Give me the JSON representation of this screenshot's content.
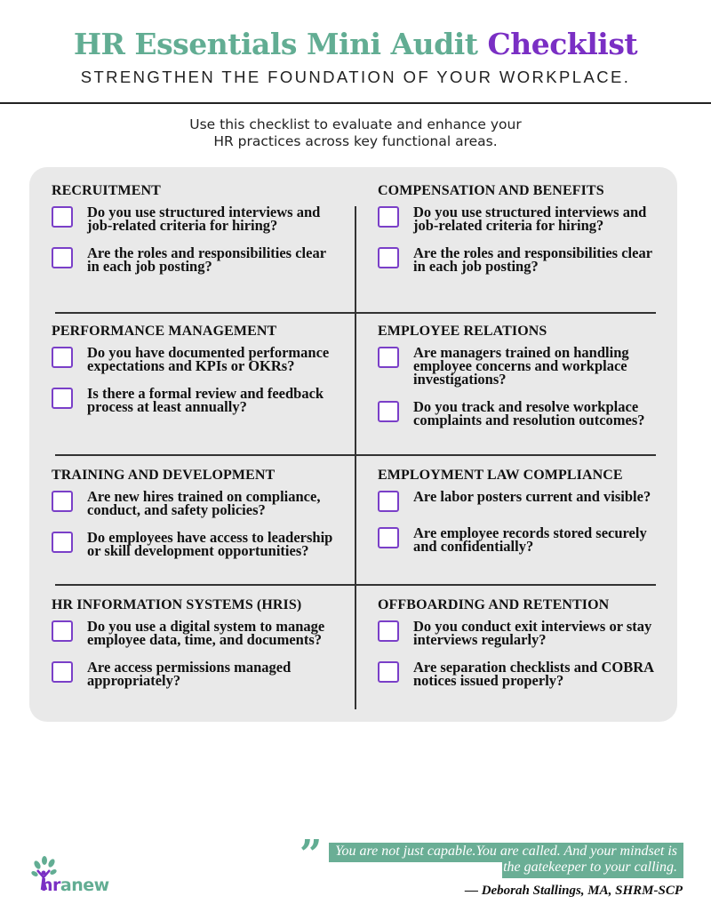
{
  "header": {
    "title_main": "HR Essentials Mini Audit",
    "title_accent": "Checklist",
    "tagline": "STRENGTHEN THE FOUNDATION OF YOUR WORKPLACE.",
    "intro_line1": "Use this checklist to evaluate and enhance your",
    "intro_line2": "HR practices across key functional areas."
  },
  "colors": {
    "accent_green": "#62ad93",
    "accent_purple": "#7a2fc4",
    "panel": "#e9e9e9"
  },
  "sections": [
    {
      "title": "RECRUITMENT",
      "items": [
        "Do you use structured interviews and job-related criteria for hiring?",
        "Are the roles and responsibilities clear in each job posting?"
      ]
    },
    {
      "title": "COMPENSATION AND BENEFITS",
      "items": [
        "Do you use structured interviews and job-related criteria for hiring?",
        "Are the roles and responsibilities clear in each job posting?"
      ]
    },
    {
      "title": "PERFORMANCE MANAGEMENT",
      "items": [
        "Do you have documented performance expectations and KPIs or OKRs?",
        "Is there a formal review and feedback process at least annually?"
      ]
    },
    {
      "title": "EMPLOYEE RELATIONS",
      "items": [
        "Are managers trained on handling employee concerns and workplace investigations?",
        "Do you track and resolve workplace complaints and resolution outcomes?"
      ]
    },
    {
      "title": "TRAINING AND DEVELOPMENT",
      "items": [
        "Are new hires trained on compliance, conduct, and safety policies?",
        "Do employees have access to leadership or skill development opportunities?"
      ]
    },
    {
      "title": "EMPLOYMENT LAW COMPLIANCE",
      "items": [
        "Are labor posters current and visible?",
        "Are employee records stored securely and confidentially?"
      ]
    },
    {
      "title": "HR INFORMATION SYSTEMS (HRIS)",
      "items": [
        "Do you use a digital system to manage employee data, time, and documents?",
        "Are access permissions managed appropriately?"
      ]
    },
    {
      "title": "OFFBOARDING AND RETENTION",
      "items": [
        "Do you conduct exit interviews or stay interviews regularly?",
        "Are separation checklists and COBRA notices issued properly?"
      ]
    }
  ],
  "footer": {
    "logo_text_hr": "hr",
    "logo_text_anew": "anew",
    "quote_mark": "”",
    "quote": "You are not just capable.You are called. And your mindset is the gatekeeper to your calling.",
    "attribution": "— Deborah Stallings, MA, SHRM-SCP"
  }
}
